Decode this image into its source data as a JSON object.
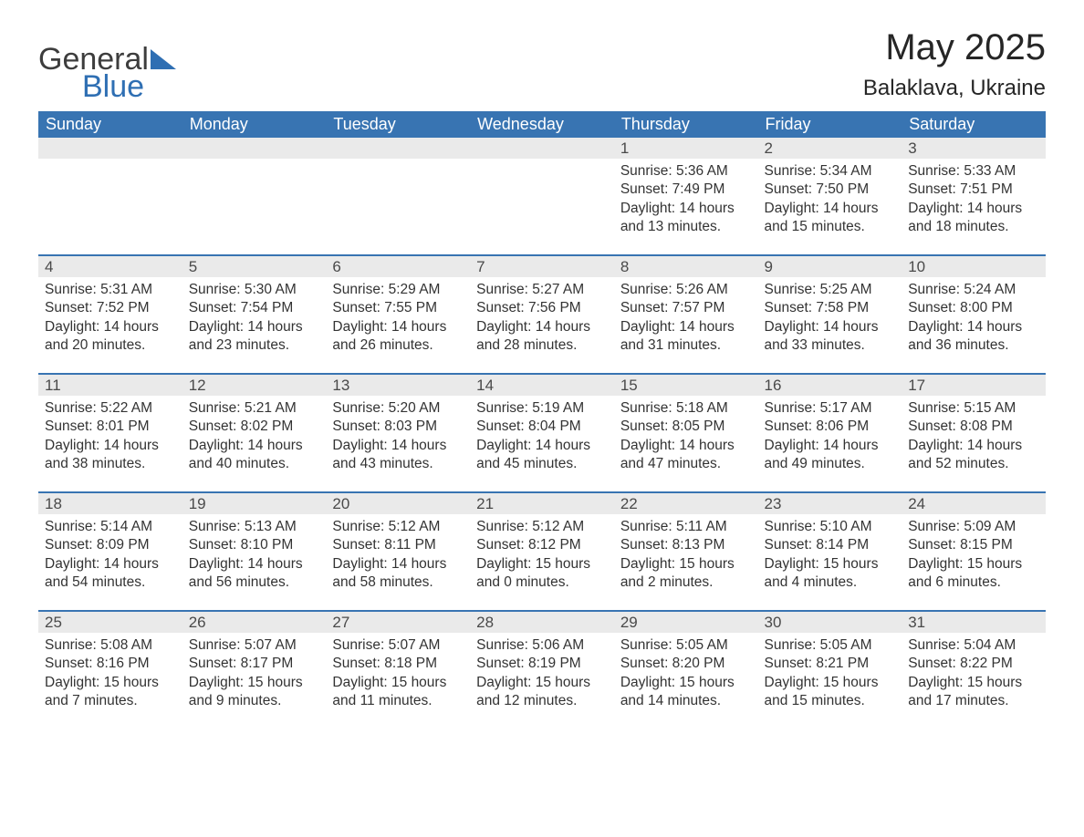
{
  "logo": {
    "word1": "General",
    "word2": "Blue"
  },
  "title": "May 2025",
  "location": "Balaklava, Ukraine",
  "colors": {
    "header_bg": "#3874b2",
    "header_text": "#ffffff",
    "daynum_bg": "#eaeaea",
    "text": "#292929",
    "logo_blue": "#2f6fb3"
  },
  "weekdays": [
    "Sunday",
    "Monday",
    "Tuesday",
    "Wednesday",
    "Thursday",
    "Friday",
    "Saturday"
  ],
  "weeks": [
    [
      null,
      null,
      null,
      null,
      {
        "n": "1",
        "sr": "Sunrise: 5:36 AM",
        "ss": "Sunset: 7:49 PM",
        "dl1": "Daylight: 14 hours",
        "dl2": "and 13 minutes."
      },
      {
        "n": "2",
        "sr": "Sunrise: 5:34 AM",
        "ss": "Sunset: 7:50 PM",
        "dl1": "Daylight: 14 hours",
        "dl2": "and 15 minutes."
      },
      {
        "n": "3",
        "sr": "Sunrise: 5:33 AM",
        "ss": "Sunset: 7:51 PM",
        "dl1": "Daylight: 14 hours",
        "dl2": "and 18 minutes."
      }
    ],
    [
      {
        "n": "4",
        "sr": "Sunrise: 5:31 AM",
        "ss": "Sunset: 7:52 PM",
        "dl1": "Daylight: 14 hours",
        "dl2": "and 20 minutes."
      },
      {
        "n": "5",
        "sr": "Sunrise: 5:30 AM",
        "ss": "Sunset: 7:54 PM",
        "dl1": "Daylight: 14 hours",
        "dl2": "and 23 minutes."
      },
      {
        "n": "6",
        "sr": "Sunrise: 5:29 AM",
        "ss": "Sunset: 7:55 PM",
        "dl1": "Daylight: 14 hours",
        "dl2": "and 26 minutes."
      },
      {
        "n": "7",
        "sr": "Sunrise: 5:27 AM",
        "ss": "Sunset: 7:56 PM",
        "dl1": "Daylight: 14 hours",
        "dl2": "and 28 minutes."
      },
      {
        "n": "8",
        "sr": "Sunrise: 5:26 AM",
        "ss": "Sunset: 7:57 PM",
        "dl1": "Daylight: 14 hours",
        "dl2": "and 31 minutes."
      },
      {
        "n": "9",
        "sr": "Sunrise: 5:25 AM",
        "ss": "Sunset: 7:58 PM",
        "dl1": "Daylight: 14 hours",
        "dl2": "and 33 minutes."
      },
      {
        "n": "10",
        "sr": "Sunrise: 5:24 AM",
        "ss": "Sunset: 8:00 PM",
        "dl1": "Daylight: 14 hours",
        "dl2": "and 36 minutes."
      }
    ],
    [
      {
        "n": "11",
        "sr": "Sunrise: 5:22 AM",
        "ss": "Sunset: 8:01 PM",
        "dl1": "Daylight: 14 hours",
        "dl2": "and 38 minutes."
      },
      {
        "n": "12",
        "sr": "Sunrise: 5:21 AM",
        "ss": "Sunset: 8:02 PM",
        "dl1": "Daylight: 14 hours",
        "dl2": "and 40 minutes."
      },
      {
        "n": "13",
        "sr": "Sunrise: 5:20 AM",
        "ss": "Sunset: 8:03 PM",
        "dl1": "Daylight: 14 hours",
        "dl2": "and 43 minutes."
      },
      {
        "n": "14",
        "sr": "Sunrise: 5:19 AM",
        "ss": "Sunset: 8:04 PM",
        "dl1": "Daylight: 14 hours",
        "dl2": "and 45 minutes."
      },
      {
        "n": "15",
        "sr": "Sunrise: 5:18 AM",
        "ss": "Sunset: 8:05 PM",
        "dl1": "Daylight: 14 hours",
        "dl2": "and 47 minutes."
      },
      {
        "n": "16",
        "sr": "Sunrise: 5:17 AM",
        "ss": "Sunset: 8:06 PM",
        "dl1": "Daylight: 14 hours",
        "dl2": "and 49 minutes."
      },
      {
        "n": "17",
        "sr": "Sunrise: 5:15 AM",
        "ss": "Sunset: 8:08 PM",
        "dl1": "Daylight: 14 hours",
        "dl2": "and 52 minutes."
      }
    ],
    [
      {
        "n": "18",
        "sr": "Sunrise: 5:14 AM",
        "ss": "Sunset: 8:09 PM",
        "dl1": "Daylight: 14 hours",
        "dl2": "and 54 minutes."
      },
      {
        "n": "19",
        "sr": "Sunrise: 5:13 AM",
        "ss": "Sunset: 8:10 PM",
        "dl1": "Daylight: 14 hours",
        "dl2": "and 56 minutes."
      },
      {
        "n": "20",
        "sr": "Sunrise: 5:12 AM",
        "ss": "Sunset: 8:11 PM",
        "dl1": "Daylight: 14 hours",
        "dl2": "and 58 minutes."
      },
      {
        "n": "21",
        "sr": "Sunrise: 5:12 AM",
        "ss": "Sunset: 8:12 PM",
        "dl1": "Daylight: 15 hours",
        "dl2": "and 0 minutes."
      },
      {
        "n": "22",
        "sr": "Sunrise: 5:11 AM",
        "ss": "Sunset: 8:13 PM",
        "dl1": "Daylight: 15 hours",
        "dl2": "and 2 minutes."
      },
      {
        "n": "23",
        "sr": "Sunrise: 5:10 AM",
        "ss": "Sunset: 8:14 PM",
        "dl1": "Daylight: 15 hours",
        "dl2": "and 4 minutes."
      },
      {
        "n": "24",
        "sr": "Sunrise: 5:09 AM",
        "ss": "Sunset: 8:15 PM",
        "dl1": "Daylight: 15 hours",
        "dl2": "and 6 minutes."
      }
    ],
    [
      {
        "n": "25",
        "sr": "Sunrise: 5:08 AM",
        "ss": "Sunset: 8:16 PM",
        "dl1": "Daylight: 15 hours",
        "dl2": "and 7 minutes."
      },
      {
        "n": "26",
        "sr": "Sunrise: 5:07 AM",
        "ss": "Sunset: 8:17 PM",
        "dl1": "Daylight: 15 hours",
        "dl2": "and 9 minutes."
      },
      {
        "n": "27",
        "sr": "Sunrise: 5:07 AM",
        "ss": "Sunset: 8:18 PM",
        "dl1": "Daylight: 15 hours",
        "dl2": "and 11 minutes."
      },
      {
        "n": "28",
        "sr": "Sunrise: 5:06 AM",
        "ss": "Sunset: 8:19 PM",
        "dl1": "Daylight: 15 hours",
        "dl2": "and 12 minutes."
      },
      {
        "n": "29",
        "sr": "Sunrise: 5:05 AM",
        "ss": "Sunset: 8:20 PM",
        "dl1": "Daylight: 15 hours",
        "dl2": "and 14 minutes."
      },
      {
        "n": "30",
        "sr": "Sunrise: 5:05 AM",
        "ss": "Sunset: 8:21 PM",
        "dl1": "Daylight: 15 hours",
        "dl2": "and 15 minutes."
      },
      {
        "n": "31",
        "sr": "Sunrise: 5:04 AM",
        "ss": "Sunset: 8:22 PM",
        "dl1": "Daylight: 15 hours",
        "dl2": "and 17 minutes."
      }
    ]
  ]
}
